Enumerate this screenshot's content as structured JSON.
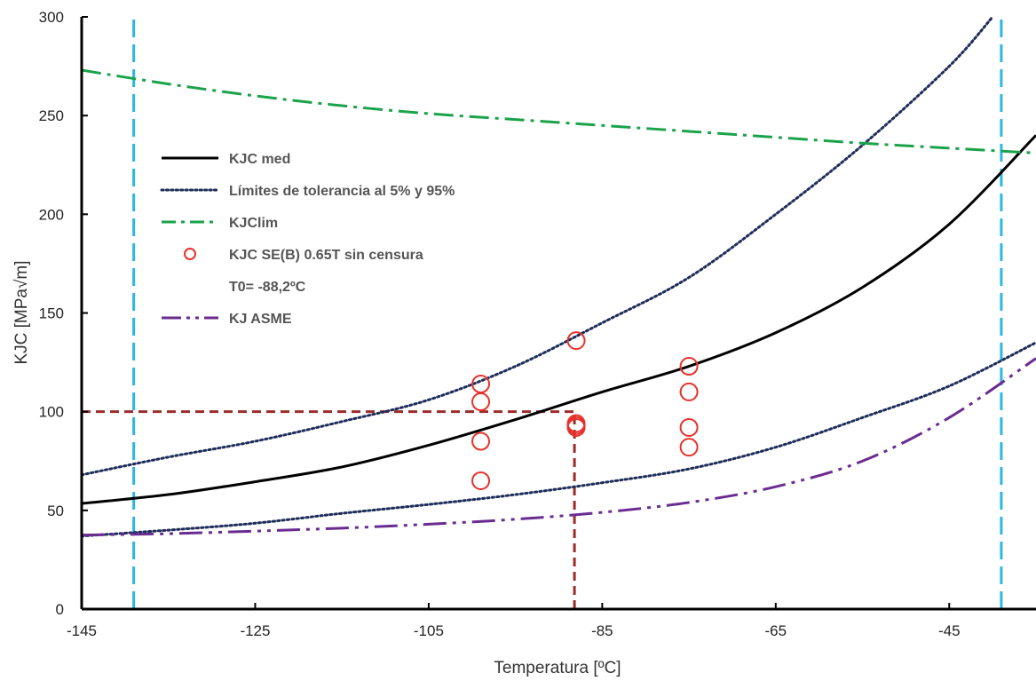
{
  "chart_data": {
    "type": "line",
    "title": "",
    "xlabel": "Temperatura [ºC]",
    "ylabel": "KJC [MPa√m]",
    "xlim": [
      -145,
      -35
    ],
    "ylim": [
      0,
      300
    ],
    "x_ticks": [
      -145,
      -125,
      -105,
      -85,
      -65,
      -45
    ],
    "y_ticks": [
      0,
      50,
      100,
      150,
      200,
      250,
      300
    ],
    "grid": false,
    "legend_position": "upper-left",
    "series": [
      {
        "name": "KJC med",
        "style": "solid",
        "color": "#000000",
        "points": [
          [
            -145,
            53.5
          ],
          [
            -135,
            58
          ],
          [
            -125,
            64.5
          ],
          [
            -115,
            72
          ],
          [
            -105,
            83
          ],
          [
            -95,
            96
          ],
          [
            -85,
            110
          ],
          [
            -75,
            123
          ],
          [
            -65,
            140
          ],
          [
            -55,
            163
          ],
          [
            -45,
            195
          ],
          [
            -35,
            240
          ]
        ]
      },
      {
        "name": "Límites de tolerancia al 5% y 95%",
        "style": "dotted",
        "color": "#1f2d5a",
        "points": [
          [
            -145,
            68
          ],
          [
            -135,
            77
          ],
          [
            -125,
            85
          ],
          [
            -115,
            95
          ],
          [
            -105,
            106
          ],
          [
            -95,
            123
          ],
          [
            -85,
            145
          ],
          [
            -75,
            168
          ],
          [
            -65,
            200
          ],
          [
            -55,
            235
          ],
          [
            -45,
            275
          ],
          [
            -40,
            300
          ]
        ]
      },
      {
        "name": "",
        "style": "dotted",
        "color": "#1f2d5a",
        "points": [
          [
            -145,
            37
          ],
          [
            -135,
            40
          ],
          [
            -125,
            43.5
          ],
          [
            -115,
            48.5
          ],
          [
            -105,
            53
          ],
          [
            -95,
            58
          ],
          [
            -85,
            64
          ],
          [
            -75,
            71
          ],
          [
            -65,
            82
          ],
          [
            -55,
            97
          ],
          [
            -45,
            113
          ],
          [
            -35,
            135
          ]
        ]
      },
      {
        "name": "KJClim",
        "style": "dashdot",
        "color": "#1aa34a",
        "points": [
          [
            -145,
            273
          ],
          [
            -135,
            266
          ],
          [
            -125,
            260
          ],
          [
            -115,
            255
          ],
          [
            -105,
            251
          ],
          [
            -95,
            248
          ],
          [
            -85,
            245
          ],
          [
            -75,
            242
          ],
          [
            -65,
            239
          ],
          [
            -55,
            236
          ],
          [
            -45,
            233.5
          ],
          [
            -35,
            231
          ]
        ]
      },
      {
        "name": "KJ ASME",
        "style": "longdashdotdot",
        "color": "#6a2c91",
        "points": [
          [
            -145,
            37.5
          ],
          [
            -135,
            38.2
          ],
          [
            -125,
            39.5
          ],
          [
            -115,
            41
          ],
          [
            -105,
            43
          ],
          [
            -95,
            45.5
          ],
          [
            -85,
            49
          ],
          [
            -75,
            54
          ],
          [
            -65,
            62
          ],
          [
            -55,
            75
          ],
          [
            -45,
            97
          ],
          [
            -35,
            127
          ]
        ]
      },
      {
        "name": "KJC SE(B) 0.65T sin censura",
        "style": "markers",
        "color": "#e8312a",
        "points": [
          [
            -99,
            114
          ],
          [
            -99,
            105
          ],
          [
            -99,
            85
          ],
          [
            -99,
            65
          ],
          [
            -88,
            136
          ],
          [
            -88,
            94
          ],
          [
            -88,
            93
          ],
          [
            -88,
            92
          ],
          [
            -75,
            123
          ],
          [
            -75,
            110
          ],
          [
            -75,
            92
          ],
          [
            -75,
            82
          ]
        ]
      }
    ],
    "reference_lines": [
      {
        "orientation": "vertical",
        "x": -139,
        "style": "dashed",
        "color": "#2bb6e8"
      },
      {
        "orientation": "vertical",
        "x": -39,
        "style": "dashed",
        "color": "#2bb6e8"
      },
      {
        "orientation": "horizontal",
        "y": 100,
        "x_from": -145,
        "x_to": -88.2,
        "style": "dashed",
        "color": "#9b2c2c"
      },
      {
        "orientation": "vertical",
        "x": -88.2,
        "y_from": 0,
        "y_to": 100,
        "style": "dashed",
        "color": "#9b2c2c"
      }
    ],
    "legend": [
      {
        "label": "KJC med",
        "style": "solid",
        "color": "#000000"
      },
      {
        "label": "Límites de tolerancia al 5% y 95%",
        "style": "dotted",
        "color": "#1f2d5a"
      },
      {
        "label": "KJClim",
        "style": "dashdot",
        "color": "#1aa34a"
      },
      {
        "label": "KJC SE(B) 0.65T sin censura",
        "style": "markers",
        "color": "#e8312a"
      },
      {
        "label": "T0= -88,2ºC",
        "style": "none",
        "color": "#555555"
      },
      {
        "label": "KJ ASME",
        "style": "longdashdotdot",
        "color": "#6a2c91"
      }
    ]
  }
}
